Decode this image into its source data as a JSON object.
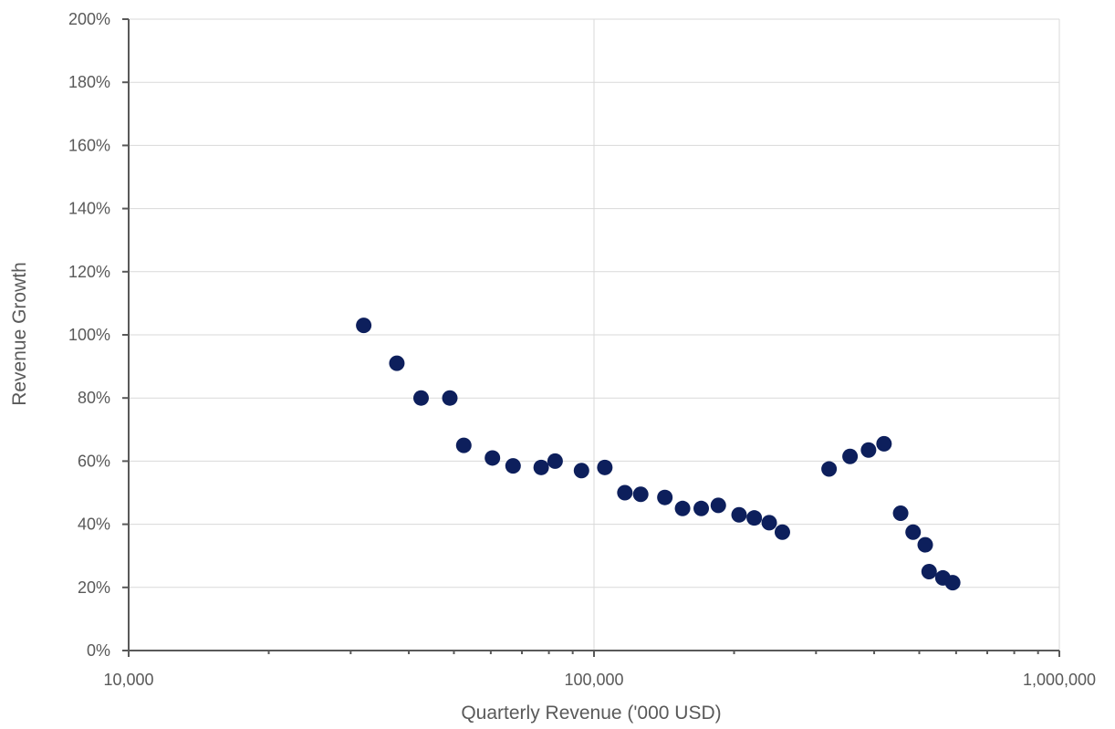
{
  "chart_data": {
    "type": "scatter",
    "title": "",
    "xlabel": "Quarterly Revenue ('000 USD)",
    "ylabel": "Revenue Growth",
    "x_scale": "log",
    "xlim": [
      10000,
      1000000
    ],
    "ylim": [
      0,
      2.0
    ],
    "x_ticks": [
      10000,
      100000,
      1000000
    ],
    "x_tick_labels": [
      "10,000",
      "100,000",
      "1,000,000"
    ],
    "y_ticks": [
      0,
      0.2,
      0.4,
      0.6,
      0.8,
      1.0,
      1.2,
      1.4,
      1.6,
      1.8,
      2.0
    ],
    "y_tick_labels": [
      "0%",
      "20%",
      "40%",
      "60%",
      "80%",
      "100%",
      "120%",
      "140%",
      "160%",
      "180%",
      "200%"
    ],
    "grid": true,
    "legend": "none",
    "marker_color": "#0d1f5c",
    "series": [
      {
        "x": [
          32000,
          37700,
          42500,
          49000,
          52500,
          60500,
          67000,
          77000,
          82500,
          94000,
          105500,
          116500,
          126000,
          142000,
          155000,
          170000,
          185000,
          205000,
          221000,
          238000,
          254000,
          320000,
          355000,
          389000,
          420000,
          456000,
          485000,
          515000,
          525000,
          562000,
          590000
        ],
        "y": [
          1.03,
          0.91,
          0.8,
          0.8,
          0.65,
          0.61,
          0.585,
          0.58,
          0.6,
          0.57,
          0.58,
          0.5,
          0.495,
          0.485,
          0.45,
          0.45,
          0.46,
          0.43,
          0.42,
          0.405,
          0.375,
          0.575,
          0.615,
          0.635,
          0.655,
          0.435,
          0.375,
          0.335,
          0.25,
          0.23,
          0.215
        ]
      }
    ]
  }
}
